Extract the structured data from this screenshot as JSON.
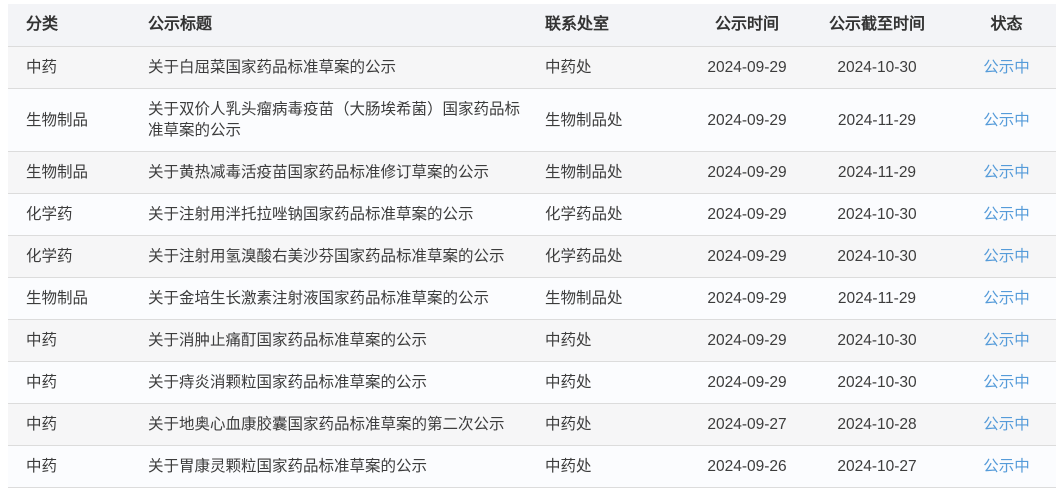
{
  "table": {
    "columns": [
      {
        "key": "category",
        "label": "分类"
      },
      {
        "key": "title",
        "label": "公示标题"
      },
      {
        "key": "department",
        "label": "联系处室"
      },
      {
        "key": "publish_date",
        "label": "公示时间"
      },
      {
        "key": "deadline",
        "label": "公示截至时间"
      },
      {
        "key": "status",
        "label": "状态"
      }
    ],
    "rows": [
      {
        "category": "中药",
        "title": "关于白屈菜国家药品标准草案的公示",
        "department": "中药处",
        "publish_date": "2024-09-29",
        "deadline": "2024-10-30",
        "status": "公示中"
      },
      {
        "category": "生物制品",
        "title": "关于双价人乳头瘤病毒疫苗（大肠埃希菌）国家药品标准草案的公示",
        "department": "生物制品处",
        "publish_date": "2024-09-29",
        "deadline": "2024-11-29",
        "status": "公示中"
      },
      {
        "category": "生物制品",
        "title": "关于黄热减毒活疫苗国家药品标准修订草案的公示",
        "department": "生物制品处",
        "publish_date": "2024-09-29",
        "deadline": "2024-11-29",
        "status": "公示中"
      },
      {
        "category": "化学药",
        "title": "关于注射用泮托拉唑钠国家药品标准草案的公示",
        "department": "化学药品处",
        "publish_date": "2024-09-29",
        "deadline": "2024-10-30",
        "status": "公示中"
      },
      {
        "category": "化学药",
        "title": "关于注射用氢溴酸右美沙芬国家药品标准草案的公示",
        "department": "化学药品处",
        "publish_date": "2024-09-29",
        "deadline": "2024-10-30",
        "status": "公示中"
      },
      {
        "category": "生物制品",
        "title": "关于金培生长激素注射液国家药品标准草案的公示",
        "department": "生物制品处",
        "publish_date": "2024-09-29",
        "deadline": "2024-11-29",
        "status": "公示中"
      },
      {
        "category": "中药",
        "title": "关于消肿止痛酊国家药品标准草案的公示",
        "department": "中药处",
        "publish_date": "2024-09-29",
        "deadline": "2024-10-30",
        "status": "公示中"
      },
      {
        "category": "中药",
        "title": "关于痔炎消颗粒国家药品标准草案的公示",
        "department": "中药处",
        "publish_date": "2024-09-29",
        "deadline": "2024-10-30",
        "status": "公示中"
      },
      {
        "category": "中药",
        "title": "关于地奥心血康胶囊国家药品标准草案的第二次公示",
        "department": "中药处",
        "publish_date": "2024-09-27",
        "deadline": "2024-10-28",
        "status": "公示中"
      },
      {
        "category": "中药",
        "title": "关于胃康灵颗粒国家药品标准草案的公示",
        "department": "中药处",
        "publish_date": "2024-09-26",
        "deadline": "2024-10-27",
        "status": "公示中"
      }
    ],
    "colors": {
      "status_link": "#559bd9",
      "header_bg": "#f3f4f7",
      "row_odd_bg": "#f6f6f7",
      "row_even_bg": "#fbfcfe",
      "divider": "#dcdcdc",
      "text": "#3c3c3c"
    }
  }
}
